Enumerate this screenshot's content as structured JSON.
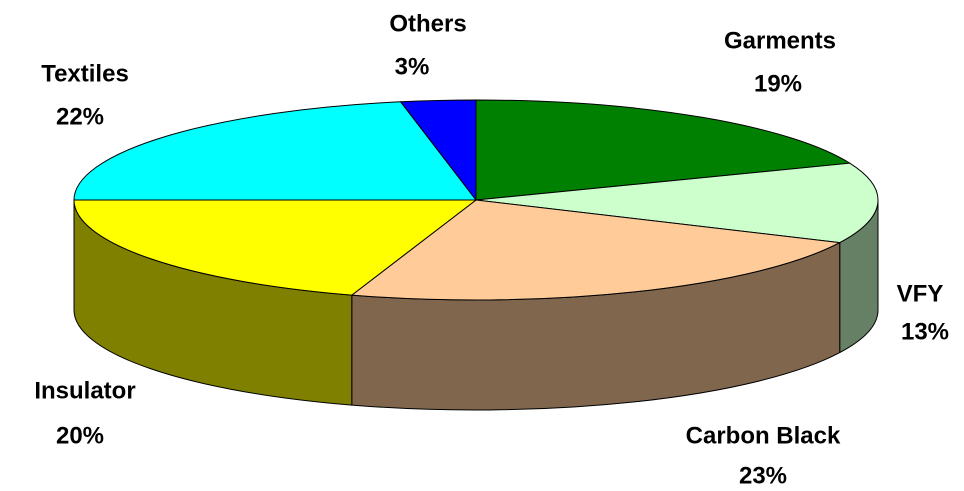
{
  "chart_data": {
    "type": "pie",
    "categories": [
      "Garments",
      "VFY",
      "Carbon Black",
      "Insulator",
      "Textiles",
      "Others"
    ],
    "values": [
      19,
      13,
      23,
      20,
      22,
      3
    ],
    "value_labels": [
      "19%",
      "13%",
      "23%",
      "20%",
      "22%",
      "3%"
    ],
    "colors": [
      "#008000",
      "#ccffcc",
      "#ffcc99",
      "#ffff00",
      "#00ffff",
      "#0000ff"
    ]
  }
}
